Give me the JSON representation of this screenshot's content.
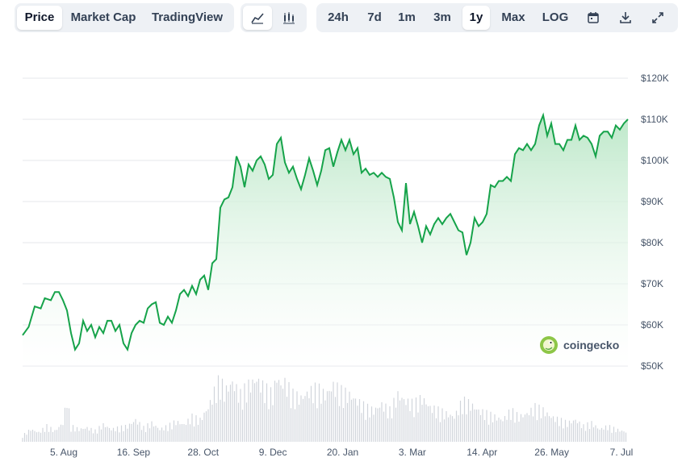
{
  "toolbar": {
    "view_tabs": [
      "Price",
      "Market Cap",
      "TradingView"
    ],
    "active_view": "Price",
    "chart_styles": [
      "line-chart-icon",
      "candlestick-chart-icon"
    ],
    "ranges": [
      "24h",
      "7d",
      "1m",
      "3m",
      "1y",
      "Max",
      "LOG"
    ],
    "active_range": "1y",
    "actions": [
      "calendar-icon",
      "download-icon",
      "expand-icon"
    ]
  },
  "watermark": {
    "text": "coingecko"
  },
  "colors": {
    "line": "#16a34a",
    "fill_top": "#bde8c9",
    "fill_bottom": "#ffffff",
    "grid": "#e5e7eb",
    "volume": "#d1d5db",
    "accent": "#8dc647"
  },
  "chart_data": {
    "type": "area",
    "y_ticks": [
      "$50K",
      "$60K",
      "$70K",
      "$80K",
      "$90K",
      "$100K",
      "$110K",
      "$120K"
    ],
    "ylim": [
      50000,
      120000
    ],
    "x_ticks": [
      "5. Aug",
      "16. Sep",
      "28. Oct",
      "9. Dec",
      "20. Jan",
      "3. Mar",
      "14. Apr",
      "26. May",
      "7. Jul"
    ],
    "series": [
      {
        "points": [
          [
            0,
            57500
          ],
          [
            3,
            59500
          ],
          [
            6,
            64500
          ],
          [
            9,
            64000
          ],
          [
            11,
            66500
          ],
          [
            14,
            66000
          ],
          [
            16,
            68000
          ],
          [
            18,
            68000
          ],
          [
            20,
            66000
          ],
          [
            22,
            63500
          ],
          [
            24,
            58000
          ],
          [
            26,
            54000
          ],
          [
            28,
            55500
          ],
          [
            30,
            61000
          ],
          [
            32,
            58500
          ],
          [
            34,
            60000
          ],
          [
            36,
            57000
          ],
          [
            38,
            59500
          ],
          [
            40,
            58000
          ],
          [
            42,
            61000
          ],
          [
            44,
            61000
          ],
          [
            46,
            58500
          ],
          [
            48,
            60000
          ],
          [
            50,
            55500
          ],
          [
            52,
            54000
          ],
          [
            54,
            58000
          ],
          [
            56,
            60000
          ],
          [
            58,
            61000
          ],
          [
            60,
            60500
          ],
          [
            62,
            64000
          ],
          [
            64,
            65000
          ],
          [
            66,
            65500
          ],
          [
            68,
            60500
          ],
          [
            70,
            60000
          ],
          [
            72,
            62000
          ],
          [
            74,
            60500
          ],
          [
            76,
            63500
          ],
          [
            78,
            67500
          ],
          [
            80,
            68500
          ],
          [
            82,
            67000
          ],
          [
            84,
            69500
          ],
          [
            86,
            67500
          ],
          [
            88,
            71000
          ],
          [
            90,
            72000
          ],
          [
            92,
            68500
          ],
          [
            94,
            75000
          ],
          [
            96,
            76000
          ],
          [
            98,
            88500
          ],
          [
            100,
            90500
          ],
          [
            102,
            91000
          ],
          [
            104,
            93500
          ],
          [
            106,
            101000
          ],
          [
            108,
            98500
          ],
          [
            110,
            93500
          ],
          [
            112,
            99000
          ],
          [
            114,
            97500
          ],
          [
            116,
            100000
          ],
          [
            118,
            101000
          ],
          [
            120,
            99000
          ],
          [
            122,
            95500
          ],
          [
            124,
            96500
          ],
          [
            126,
            104000
          ],
          [
            128,
            105500
          ],
          [
            130,
            99500
          ],
          [
            132,
            97000
          ],
          [
            134,
            98500
          ],
          [
            136,
            95500
          ],
          [
            138,
            93000
          ],
          [
            140,
            96500
          ],
          [
            142,
            100500
          ],
          [
            144,
            97500
          ],
          [
            146,
            94000
          ],
          [
            148,
            97500
          ],
          [
            150,
            102500
          ],
          [
            152,
            103000
          ],
          [
            154,
            98500
          ],
          [
            156,
            102000
          ],
          [
            158,
            105000
          ],
          [
            160,
            102500
          ],
          [
            162,
            105000
          ],
          [
            164,
            101500
          ],
          [
            166,
            103000
          ],
          [
            168,
            97000
          ],
          [
            170,
            98000
          ],
          [
            172,
            96500
          ],
          [
            174,
            97000
          ],
          [
            176,
            96000
          ],
          [
            178,
            97000
          ],
          [
            180,
            96000
          ],
          [
            182,
            95500
          ],
          [
            184,
            91000
          ],
          [
            186,
            85000
          ],
          [
            188,
            83000
          ],
          [
            190,
            94500
          ],
          [
            192,
            84500
          ],
          [
            194,
            87500
          ],
          [
            196,
            84000
          ],
          [
            198,
            80000
          ],
          [
            200,
            84000
          ],
          [
            202,
            82000
          ],
          [
            204,
            84500
          ],
          [
            206,
            86000
          ],
          [
            208,
            84500
          ],
          [
            210,
            86000
          ],
          [
            212,
            87000
          ],
          [
            214,
            85000
          ],
          [
            216,
            83000
          ],
          [
            218,
            82500
          ],
          [
            220,
            77000
          ],
          [
            222,
            80000
          ],
          [
            224,
            86000
          ],
          [
            226,
            84000
          ],
          [
            228,
            85000
          ],
          [
            230,
            87000
          ],
          [
            232,
            94000
          ],
          [
            234,
            93500
          ],
          [
            236,
            95000
          ],
          [
            238,
            95000
          ],
          [
            240,
            96000
          ],
          [
            242,
            95000
          ],
          [
            244,
            101500
          ],
          [
            246,
            103000
          ],
          [
            248,
            102500
          ],
          [
            250,
            104000
          ],
          [
            252,
            102500
          ],
          [
            254,
            104000
          ],
          [
            256,
            108500
          ],
          [
            258,
            111000
          ],
          [
            260,
            106000
          ],
          [
            262,
            109000
          ],
          [
            264,
            104000
          ],
          [
            266,
            104000
          ],
          [
            268,
            102500
          ],
          [
            270,
            105000
          ],
          [
            272,
            105000
          ],
          [
            274,
            108500
          ],
          [
            276,
            105000
          ],
          [
            278,
            106000
          ],
          [
            280,
            105500
          ],
          [
            282,
            104000
          ],
          [
            284,
            101000
          ],
          [
            286,
            106000
          ],
          [
            288,
            107000
          ],
          [
            290,
            107000
          ],
          [
            292,
            105500
          ],
          [
            294,
            108500
          ],
          [
            296,
            107500
          ],
          [
            298,
            109000
          ],
          [
            300,
            110000
          ]
        ]
      }
    ],
    "volume_points": [
      [
        0,
        4
      ],
      [
        4,
        8
      ],
      [
        8,
        6
      ],
      [
        12,
        10
      ],
      [
        16,
        7
      ],
      [
        20,
        12
      ],
      [
        22,
        28
      ],
      [
        24,
        10
      ],
      [
        28,
        8
      ],
      [
        32,
        9
      ],
      [
        36,
        7
      ],
      [
        40,
        11
      ],
      [
        44,
        8
      ],
      [
        48,
        9
      ],
      [
        52,
        10
      ],
      [
        56,
        14
      ],
      [
        60,
        9
      ],
      [
        64,
        12
      ],
      [
        68,
        8
      ],
      [
        72,
        10
      ],
      [
        76,
        13
      ],
      [
        80,
        11
      ],
      [
        84,
        16
      ],
      [
        88,
        14
      ],
      [
        92,
        22
      ],
      [
        96,
        35
      ],
      [
        98,
        40
      ],
      [
        100,
        32
      ],
      [
        104,
        38
      ],
      [
        108,
        30
      ],
      [
        112,
        36
      ],
      [
        116,
        40
      ],
      [
        120,
        34
      ],
      [
        124,
        30
      ],
      [
        126,
        42
      ],
      [
        128,
        36
      ],
      [
        130,
        38
      ],
      [
        134,
        30
      ],
      [
        138,
        28
      ],
      [
        142,
        32
      ],
      [
        146,
        34
      ],
      [
        150,
        30
      ],
      [
        154,
        36
      ],
      [
        158,
        32
      ],
      [
        162,
        30
      ],
      [
        166,
        26
      ],
      [
        170,
        22
      ],
      [
        174,
        20
      ],
      [
        178,
        24
      ],
      [
        182,
        20
      ],
      [
        186,
        30
      ],
      [
        190,
        26
      ],
      [
        194,
        24
      ],
      [
        198,
        28
      ],
      [
        202,
        22
      ],
      [
        206,
        20
      ],
      [
        210,
        18
      ],
      [
        214,
        16
      ],
      [
        218,
        26
      ],
      [
        222,
        24
      ],
      [
        226,
        20
      ],
      [
        230,
        18
      ],
      [
        234,
        16
      ],
      [
        238,
        14
      ],
      [
        242,
        20
      ],
      [
        246,
        16
      ],
      [
        250,
        18
      ],
      [
        254,
        22
      ],
      [
        258,
        20
      ],
      [
        262,
        16
      ],
      [
        266,
        14
      ],
      [
        270,
        12
      ],
      [
        274,
        14
      ],
      [
        278,
        10
      ],
      [
        282,
        12
      ],
      [
        286,
        8
      ],
      [
        290,
        10
      ],
      [
        294,
        8
      ],
      [
        300,
        6
      ]
    ]
  }
}
